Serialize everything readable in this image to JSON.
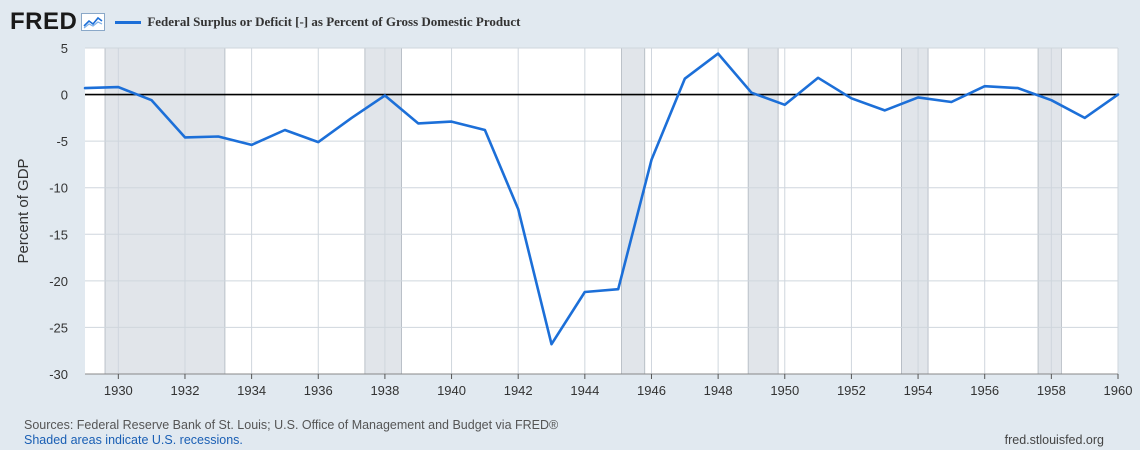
{
  "brand": {
    "name": "FRED"
  },
  "colors": {
    "series": "#1c6fd8",
    "recession": "#e1e5ea",
    "plot_bg": "#ffffff",
    "page_bg": "#e1e9f0",
    "grid": "#cfd6dd"
  },
  "footer": {
    "sources": "Sources: Federal Reserve Bank of St. Louis; U.S. Office of Management and Budget via FRED®",
    "recessions_note": "Shaded areas indicate U.S. recessions.",
    "url": "fred.stlouisfed.org"
  },
  "chart_data": {
    "type": "line",
    "title": "",
    "xlabel": "",
    "ylabel": "Percent of GDP",
    "xlim": [
      1929,
      1960
    ],
    "ylim": [
      -30,
      5
    ],
    "grid": true,
    "legend_position": "top-left",
    "x_ticks": [
      1930,
      1932,
      1934,
      1936,
      1938,
      1940,
      1942,
      1944,
      1946,
      1948,
      1950,
      1952,
      1954,
      1956,
      1958,
      1960
    ],
    "y_ticks": [
      5,
      0,
      -5,
      -10,
      -15,
      -20,
      -25,
      -30
    ],
    "recessions": [
      [
        1929.6,
        1933.2
      ],
      [
        1937.4,
        1938.5
      ],
      [
        1945.1,
        1945.8
      ],
      [
        1948.9,
        1949.8
      ],
      [
        1953.5,
        1954.3
      ],
      [
        1957.6,
        1958.3
      ]
    ],
    "series": [
      {
        "name": "Federal Surplus or Deficit [-] as Percent of Gross Domestic Product",
        "x": [
          1929,
          1930,
          1931,
          1932,
          1933,
          1934,
          1935,
          1936,
          1937,
          1938,
          1939,
          1940,
          1941,
          1942,
          1943,
          1944,
          1945,
          1946,
          1947,
          1948,
          1949,
          1950,
          1951,
          1952,
          1953,
          1954,
          1955,
          1956,
          1957,
          1958,
          1959,
          1960
        ],
        "y": [
          0.7,
          0.8,
          -0.6,
          -4.6,
          -4.5,
          -5.4,
          -3.8,
          -5.1,
          -2.5,
          -0.1,
          -3.1,
          -2.9,
          -3.8,
          -12.3,
          -26.8,
          -21.2,
          -20.9,
          -7.0,
          1.7,
          4.4,
          0.2,
          -1.1,
          1.8,
          -0.4,
          -1.7,
          -0.3,
          -0.8,
          0.9,
          0.7,
          -0.6,
          -2.5,
          0.0
        ]
      }
    ]
  }
}
